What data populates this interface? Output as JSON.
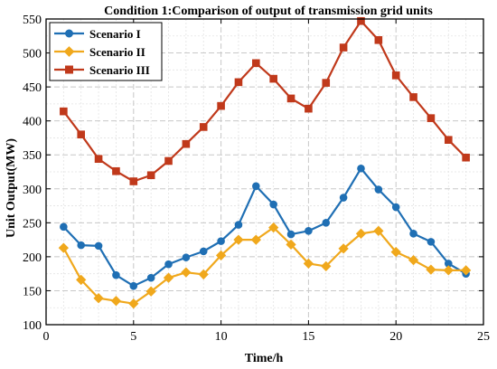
{
  "chart_data": {
    "type": "line",
    "title": "Condition 1:Comparison of output of transmission grid units",
    "xlabel": "Time/h",
    "ylabel": "Unit Output(MW)",
    "xlim": [
      0,
      25
    ],
    "ylim": [
      100,
      550
    ],
    "xticks": [
      0,
      5,
      10,
      15,
      20,
      25
    ],
    "yticks": [
      100,
      150,
      200,
      250,
      300,
      350,
      400,
      450,
      500,
      550
    ],
    "grid": true,
    "legend_position": "top-left",
    "x": [
      1,
      2,
      3,
      4,
      5,
      6,
      7,
      8,
      9,
      10,
      11,
      12,
      13,
      14,
      15,
      16,
      17,
      18,
      19,
      20,
      21,
      22,
      23,
      24
    ],
    "series": [
      {
        "name": "Scenario I",
        "color": "#1f6fb4",
        "marker": "circle",
        "values": [
          244,
          217,
          216,
          173,
          157,
          169,
          189,
          199,
          208,
          223,
          247,
          304,
          277,
          233,
          238,
          250,
          287,
          330,
          299,
          273,
          234,
          222,
          190,
          175
        ]
      },
      {
        "name": "Scenario II",
        "color": "#f0a81c",
        "marker": "diamond",
        "values": [
          213,
          166,
          139,
          135,
          131,
          149,
          169,
          177,
          174,
          202,
          225,
          225,
          243,
          218,
          190,
          186,
          212,
          234,
          238,
          207,
          195,
          181,
          180,
          180
        ]
      },
      {
        "name": "Scenario III",
        "color": "#c0391b",
        "marker": "square",
        "values": [
          414,
          380,
          344,
          326,
          311,
          320,
          341,
          366,
          391,
          422,
          457,
          485,
          462,
          433,
          418,
          456,
          508,
          547,
          519,
          467,
          435,
          404,
          372,
          346
        ]
      }
    ]
  }
}
